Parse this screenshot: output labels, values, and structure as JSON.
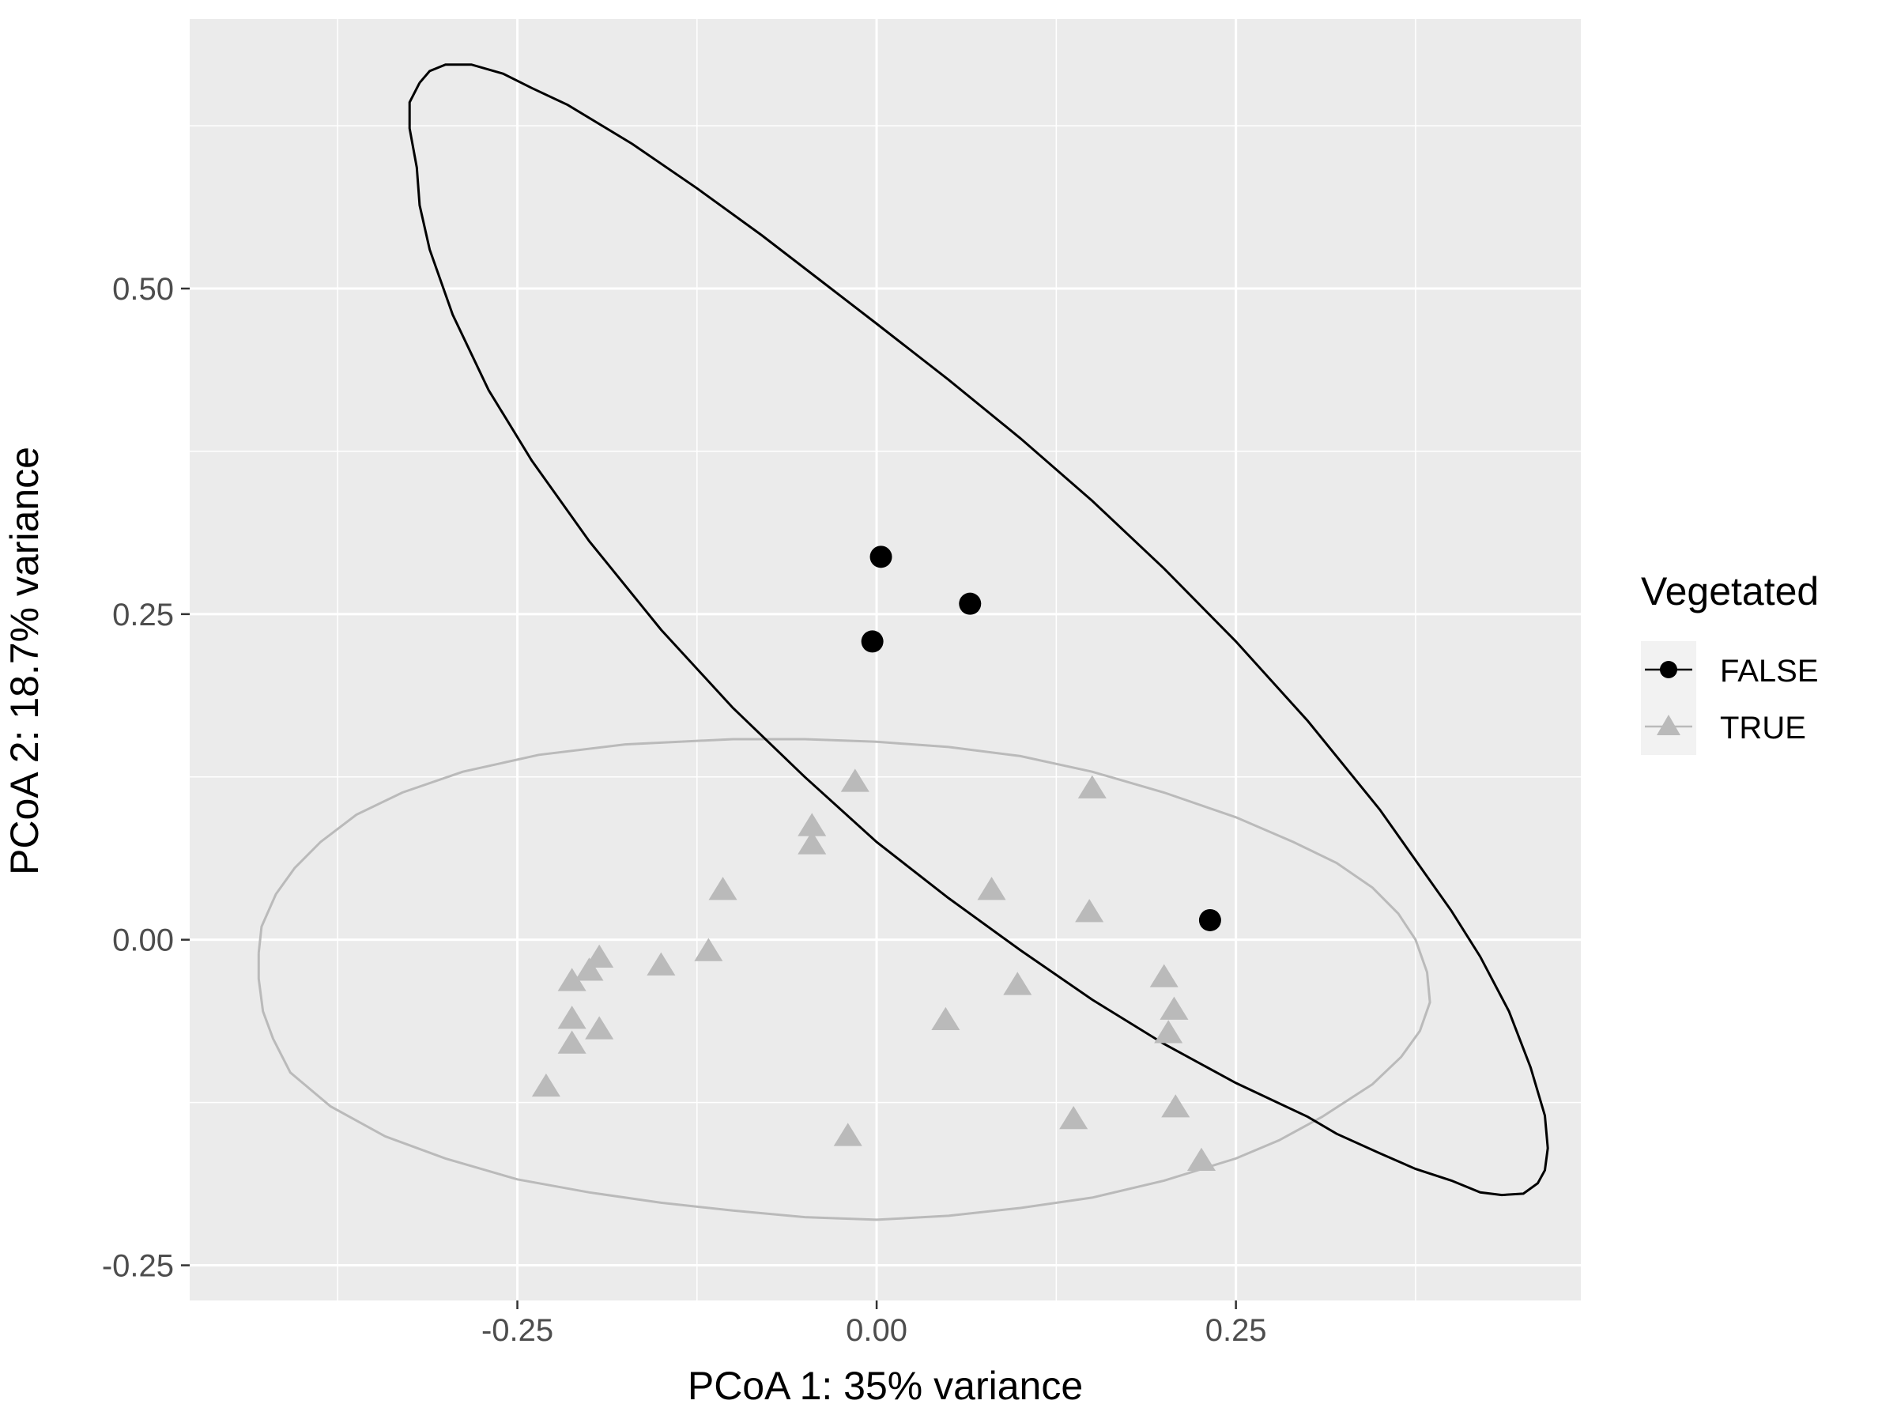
{
  "chart_data": {
    "type": "scatter",
    "title": "",
    "xlabel": "PCoA 1: 35% variance",
    "ylabel": "PCoA 2: 18.7% variance",
    "xlim": [
      -0.478,
      0.49
    ],
    "ylim": [
      -0.277,
      0.707
    ],
    "x_major_ticks": [
      -0.25,
      0.0,
      0.25
    ],
    "x_minor_ticks": [
      -0.375,
      -0.125,
      0.125,
      0.375
    ],
    "y_major_ticks": [
      -0.25,
      0.0,
      0.25,
      0.5
    ],
    "y_minor_ticks": [
      -0.125,
      0.125,
      0.375,
      0.625
    ],
    "x_tick_labels": [
      "-0.25",
      "0.00",
      "0.25"
    ],
    "y_tick_labels": [
      "-0.25",
      "0.00",
      "0.25",
      "0.50"
    ],
    "grid": true,
    "panel_background": "#ebebeb",
    "legend": {
      "title": "Vegetated",
      "position": "right",
      "entries": [
        "FALSE",
        "TRUE"
      ]
    },
    "series": [
      {
        "name": "FALSE",
        "color": "#000000",
        "marker": "circle",
        "points": [
          {
            "x": 0.003,
            "y": 0.294
          },
          {
            "x": 0.065,
            "y": 0.258
          },
          {
            "x": -0.003,
            "y": 0.229
          },
          {
            "x": 0.232,
            "y": 0.015
          }
        ],
        "ellipse": [
          [
            -0.318,
            0.658
          ],
          [
            -0.311,
            0.667
          ],
          [
            -0.3,
            0.672
          ],
          [
            -0.282,
            0.672
          ],
          [
            -0.26,
            0.665
          ],
          [
            -0.24,
            0.654
          ],
          [
            -0.215,
            0.641
          ],
          [
            -0.17,
            0.611
          ],
          [
            -0.125,
            0.577
          ],
          [
            -0.08,
            0.541
          ],
          [
            -0.04,
            0.507
          ],
          [
            0.0,
            0.473
          ],
          [
            0.05,
            0.43
          ],
          [
            0.1,
            0.385
          ],
          [
            0.15,
            0.337
          ],
          [
            0.2,
            0.285
          ],
          [
            0.25,
            0.229
          ],
          [
            0.3,
            0.168
          ],
          [
            0.35,
            0.1
          ],
          [
            0.4,
            0.022
          ],
          [
            0.42,
            -0.013
          ],
          [
            0.44,
            -0.055
          ],
          [
            0.455,
            -0.098
          ],
          [
            0.465,
            -0.135
          ],
          [
            0.467,
            -0.16
          ],
          [
            0.465,
            -0.177
          ],
          [
            0.46,
            -0.187
          ],
          [
            0.45,
            -0.195
          ],
          [
            0.435,
            -0.196
          ],
          [
            0.42,
            -0.194
          ],
          [
            0.4,
            -0.185
          ],
          [
            0.375,
            -0.176
          ],
          [
            0.35,
            -0.164
          ],
          [
            0.32,
            -0.149
          ],
          [
            0.3,
            -0.136
          ],
          [
            0.25,
            -0.11
          ],
          [
            0.2,
            -0.08
          ],
          [
            0.15,
            -0.046
          ],
          [
            0.1,
            -0.008
          ],
          [
            0.05,
            0.032
          ],
          [
            0.0,
            0.075
          ],
          [
            -0.05,
            0.125
          ],
          [
            -0.1,
            0.178
          ],
          [
            -0.15,
            0.238
          ],
          [
            -0.2,
            0.306
          ],
          [
            -0.24,
            0.368
          ],
          [
            -0.27,
            0.422
          ],
          [
            -0.295,
            0.48
          ],
          [
            -0.311,
            0.53
          ],
          [
            -0.318,
            0.564
          ],
          [
            -0.32,
            0.593
          ],
          [
            -0.325,
            0.623
          ],
          [
            -0.325,
            0.643
          ],
          [
            -0.318,
            0.658
          ]
        ]
      },
      {
        "name": "TRUE",
        "color": "#bababa",
        "marker": "triangle",
        "points": [
          {
            "x": -0.015,
            "y": 0.121
          },
          {
            "x": 0.15,
            "y": 0.116
          },
          {
            "x": -0.045,
            "y": 0.087
          },
          {
            "x": -0.045,
            "y": 0.073
          },
          {
            "x": -0.107,
            "y": 0.038
          },
          {
            "x": 0.08,
            "y": 0.038
          },
          {
            "x": 0.148,
            "y": 0.021
          },
          {
            "x": -0.117,
            "y": -0.009
          },
          {
            "x": -0.15,
            "y": -0.02
          },
          {
            "x": -0.193,
            "y": -0.014
          },
          {
            "x": -0.2,
            "y": -0.024
          },
          {
            "x": -0.212,
            "y": -0.032
          },
          {
            "x": 0.2,
            "y": -0.029
          },
          {
            "x": 0.098,
            "y": -0.035
          },
          {
            "x": 0.207,
            "y": -0.054
          },
          {
            "x": -0.212,
            "y": -0.061
          },
          {
            "x": 0.048,
            "y": -0.062
          },
          {
            "x": -0.193,
            "y": -0.069
          },
          {
            "x": 0.203,
            "y": -0.072
          },
          {
            "x": -0.212,
            "y": -0.08
          },
          {
            "x": -0.23,
            "y": -0.113
          },
          {
            "x": 0.208,
            "y": -0.129
          },
          {
            "x": 0.137,
            "y": -0.138
          },
          {
            "x": -0.02,
            "y": -0.151
          },
          {
            "x": 0.226,
            "y": -0.17
          }
        ],
        "ellipse": [
          [
            -0.43,
            -0.01
          ],
          [
            -0.428,
            0.01
          ],
          [
            -0.418,
            0.035
          ],
          [
            -0.405,
            0.055
          ],
          [
            -0.387,
            0.075
          ],
          [
            -0.362,
            0.096
          ],
          [
            -0.33,
            0.113
          ],
          [
            -0.288,
            0.129
          ],
          [
            -0.235,
            0.142
          ],
          [
            -0.175,
            0.15
          ],
          [
            -0.1,
            0.154
          ],
          [
            -0.05,
            0.154
          ],
          [
            0.0,
            0.152
          ],
          [
            0.05,
            0.148
          ],
          [
            0.1,
            0.141
          ],
          [
            0.15,
            0.129
          ],
          [
            0.2,
            0.113
          ],
          [
            0.25,
            0.094
          ],
          [
            0.29,
            0.075
          ],
          [
            0.32,
            0.059
          ],
          [
            0.345,
            0.04
          ],
          [
            0.363,
            0.02
          ],
          [
            0.375,
            0.0
          ],
          [
            0.383,
            -0.025
          ],
          [
            0.385,
            -0.048
          ],
          [
            0.378,
            -0.07
          ],
          [
            0.365,
            -0.09
          ],
          [
            0.345,
            -0.111
          ],
          [
            0.31,
            -0.136
          ],
          [
            0.28,
            -0.154
          ],
          [
            0.25,
            -0.168
          ],
          [
            0.2,
            -0.185
          ],
          [
            0.15,
            -0.198
          ],
          [
            0.1,
            -0.206
          ],
          [
            0.05,
            -0.212
          ],
          [
            0.0,
            -0.215
          ],
          [
            -0.05,
            -0.213
          ],
          [
            -0.1,
            -0.208
          ],
          [
            -0.15,
            -0.202
          ],
          [
            -0.2,
            -0.194
          ],
          [
            -0.25,
            -0.184
          ],
          [
            -0.3,
            -0.168
          ],
          [
            -0.342,
            -0.151
          ],
          [
            -0.38,
            -0.128
          ],
          [
            -0.408,
            -0.102
          ],
          [
            -0.42,
            -0.076
          ],
          [
            -0.427,
            -0.055
          ],
          [
            -0.43,
            -0.03
          ],
          [
            -0.43,
            -0.01
          ]
        ]
      }
    ]
  }
}
